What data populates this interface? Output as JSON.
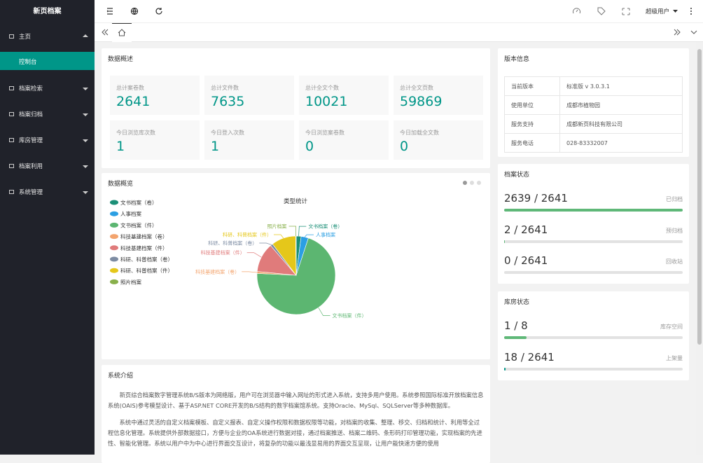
{
  "sidebar": {
    "title": "新页档案",
    "menu": [
      {
        "label": "主页",
        "children": [
          "控制台"
        ]
      },
      {
        "label": "档案检索"
      },
      {
        "label": "档案归档"
      },
      {
        "label": "库房管理"
      },
      {
        "label": "档案利用"
      },
      {
        "label": "系统管理"
      }
    ]
  },
  "topbar": {
    "user": "超级用户"
  },
  "overview": {
    "title": "数据概述",
    "cards": [
      {
        "label": "总计案卷数",
        "value": 2641
      },
      {
        "label": "总计文件数",
        "value": 7635
      },
      {
        "label": "总计全文个数",
        "value": 10021
      },
      {
        "label": "总计全文页数",
        "value": 59869
      },
      {
        "label": "今日浏览库次数",
        "value": 1
      },
      {
        "label": "今日登入次数",
        "value": 1
      },
      {
        "label": "今日浏览案卷数",
        "value": 0
      },
      {
        "label": "今日加载全文数",
        "value": 0
      }
    ]
  },
  "chart_panel": {
    "title": "数据概览"
  },
  "chart_data": {
    "type": "pie",
    "title": "类型统计",
    "categories": [
      "文书档案（卷）",
      "人事档案",
      "文书档案（件）",
      "科技基建档案（卷）",
      "科技基建档案（件）",
      "科研、科普档案（卷）",
      "科研、科普档案（件）",
      "照片档案"
    ],
    "values": [
      20,
      30,
      700,
      8,
      120,
      10,
      100,
      2
    ],
    "colors": [
      "#1b8f77",
      "#2b9fe3",
      "#5cb671",
      "#f3a46e",
      "#e07b7b",
      "#7d8ca3",
      "#e5c71a",
      "#88b04b"
    ]
  },
  "intro": {
    "title": "系统介绍",
    "paragraphs": [
      "新页综合档案数字管理系统B/S版本为网络版，用户可在浏览器中输入网址的形式进入系统，支持多用户使用。系统参照国际标准开放档案信息系统(OAIS)参考模型设计、基于ASP.NET CORE开发的B/S结构的数字档案馆系统。支持Oracle、MySql、SQLServer等多种数据库。",
      "系统中通过灵活的自定义档案模板、自定义报表、自定义操作权限和数据权限等功能，对档案的收集、整理、移交、归档和统计、利用等全过程信息化管理。系统提供外部数据接口，方便与企业的OA系统进行数据对接，通过档案推送、档案二维码、条形码打印管理功能，实现档案的先进性、智能化管理。系统以用户中为中心进行界面交互设计，将复杂的功能以最浅显易用的界面交互呈现，让用户能快速方便的使用"
    ]
  },
  "version": {
    "title": "版本信息",
    "rows": [
      [
        "当前版本",
        "标准版 v 3.0.3.1"
      ],
      [
        "使用单位",
        "成都市植物园"
      ],
      [
        "服务支持",
        "成都新页科技有限公司"
      ],
      [
        "服务电话",
        "028-83332007"
      ]
    ]
  },
  "archive_status": {
    "title": "档案状态",
    "items": [
      {
        "text": "2639 / 2641",
        "value": 2639,
        "total": 2641,
        "label": "已归档",
        "color": "#5fb878"
      },
      {
        "text": "2 / 2641",
        "value": 2,
        "total": 2641,
        "label": "预归档",
        "color": "#5fb878"
      },
      {
        "text": "0 / 2641",
        "value": 0,
        "total": 2641,
        "label": "回收站",
        "color": "#5fb878"
      }
    ]
  },
  "storage_status": {
    "title": "库房状态",
    "items": [
      {
        "text": "1 / 8",
        "value": 1,
        "total": 8,
        "label": "库存空间",
        "color": "#5fb878"
      },
      {
        "text": "18 / 2641",
        "value": 18,
        "total": 2641,
        "label": "上架量",
        "color": "#009688"
      }
    ]
  }
}
